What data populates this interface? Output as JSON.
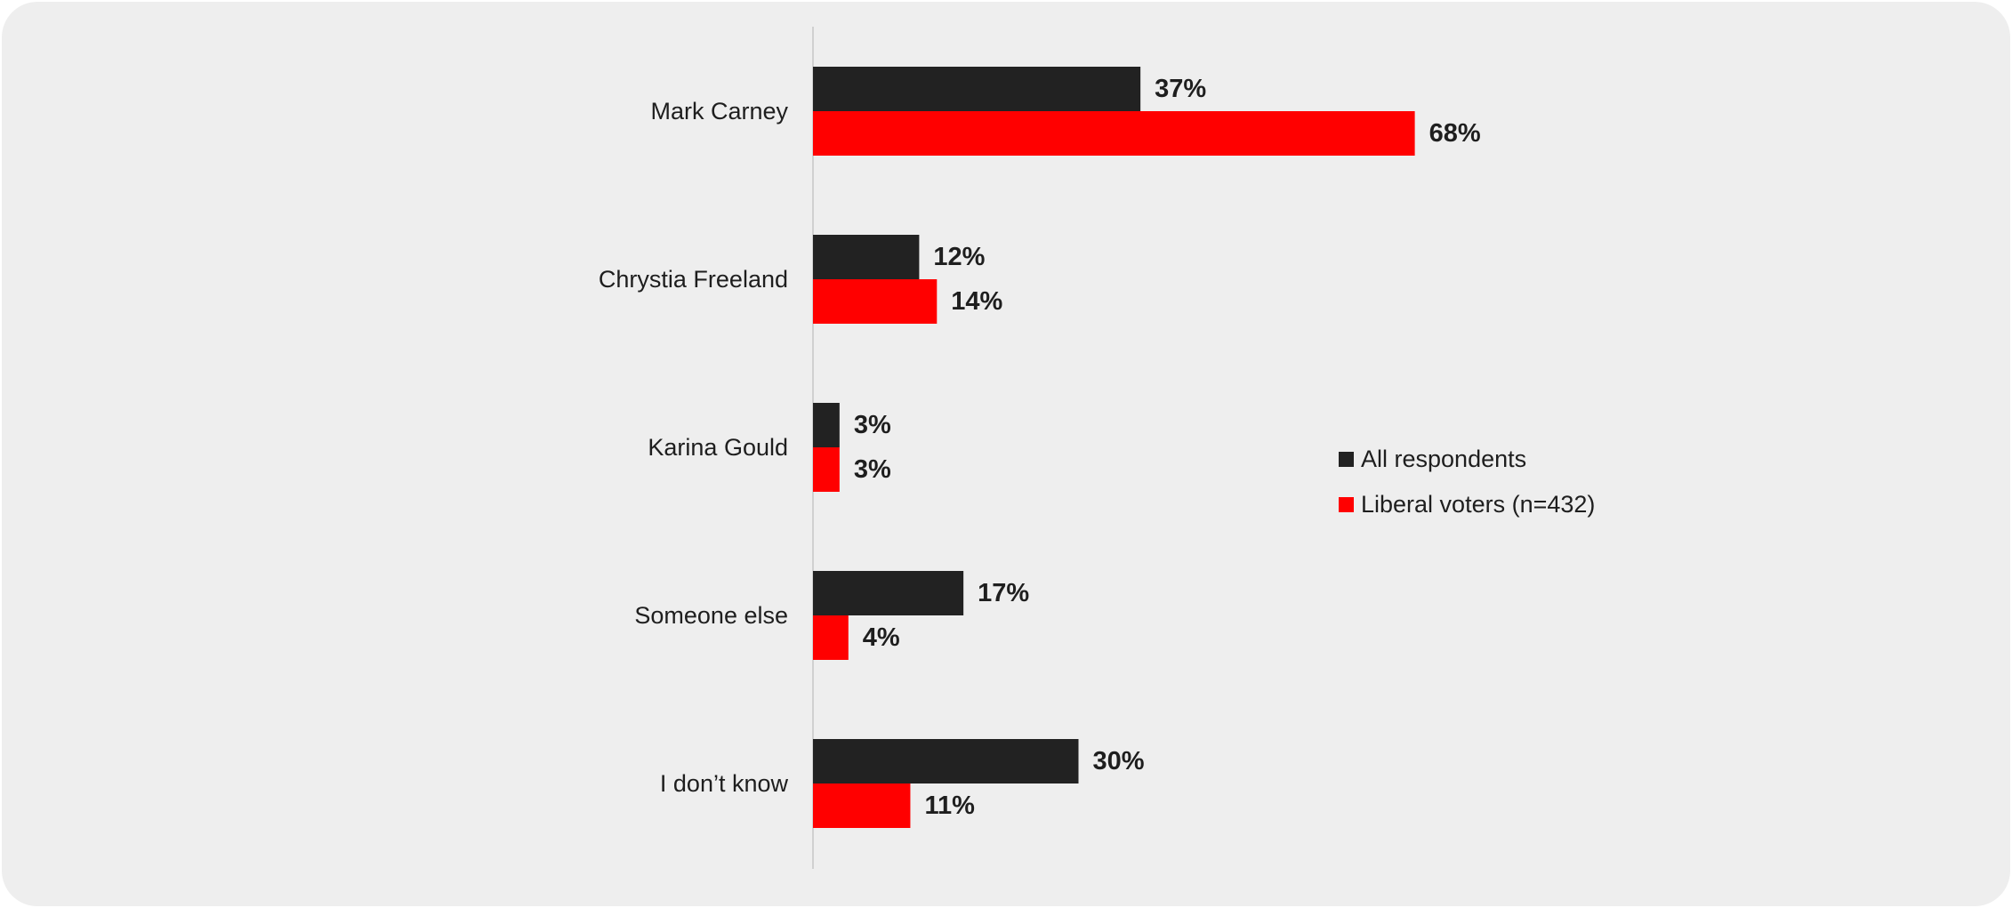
{
  "chart_data": {
    "type": "bar",
    "orientation": "horizontal",
    "title": "",
    "xlabel": "",
    "ylabel": "",
    "categories": [
      "Mark Carney",
      "Chrystia Freeland",
      "Karina Gould",
      "Someone else",
      "I don’t know"
    ],
    "series": [
      {
        "name": "All respondents",
        "color": "#222222",
        "values": [
          37,
          12,
          3,
          17,
          30
        ],
        "labels": [
          "37%",
          "12%",
          "3%",
          "17%",
          "30%"
        ]
      },
      {
        "name": "Liberal voters (n=432)",
        "color": "#ff0000",
        "values": [
          68,
          14,
          3,
          4,
          11
        ],
        "labels": [
          "68%",
          "14%",
          "3%",
          "4%",
          "11%"
        ]
      }
    ],
    "xlim": [
      0,
      100
    ],
    "grid": false,
    "legend_position": "right"
  }
}
